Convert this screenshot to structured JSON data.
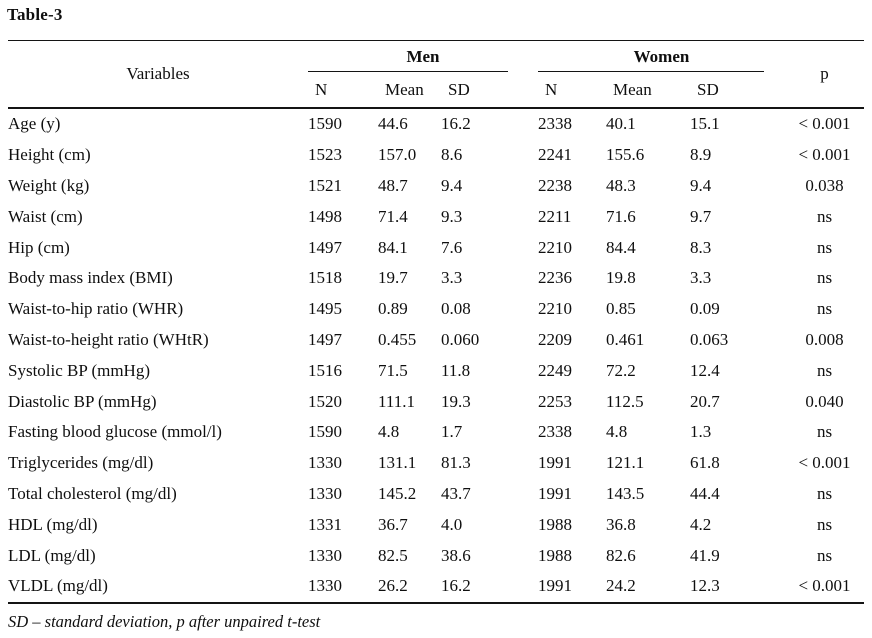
{
  "title": "Table-3",
  "header": {
    "variables": "Variables",
    "men_group": "Men",
    "women_group": "Women",
    "p": "p",
    "n": "N",
    "mean": "Mean",
    "sd": "SD"
  },
  "rows": [
    {
      "variable": "Age (y)",
      "men_n": "1590",
      "men_mean": "44.6",
      "men_sd": "16.2",
      "women_n": "2338",
      "women_mean": "40.1",
      "women_sd": "15.1",
      "p": "< 0.001"
    },
    {
      "variable": "Height (cm)",
      "men_n": "1523",
      "men_mean": "157.0",
      "men_sd": "8.6",
      "women_n": "2241",
      "women_mean": "155.6",
      "women_sd": "8.9",
      "p": "< 0.001"
    },
    {
      "variable": "Weight (kg)",
      "men_n": "1521",
      "men_mean": "48.7",
      "men_sd": "9.4",
      "women_n": "2238",
      "women_mean": "48.3",
      "women_sd": "9.4",
      "p": "0.038"
    },
    {
      "variable": "Waist (cm)",
      "men_n": "1498",
      "men_mean": "71.4",
      "men_sd": "9.3",
      "women_n": "2211",
      "women_mean": "71.6",
      "women_sd": "9.7",
      "p": "ns"
    },
    {
      "variable": "Hip (cm)",
      "men_n": "1497",
      "men_mean": "84.1",
      "men_sd": "7.6",
      "women_n": "2210",
      "women_mean": "84.4",
      "women_sd": "8.3",
      "p": "ns"
    },
    {
      "variable": "Body mass index (BMI)",
      "men_n": "1518",
      "men_mean": "19.7",
      "men_sd": "3.3",
      "women_n": "2236",
      "women_mean": "19.8",
      "women_sd": "3.3",
      "p": "ns"
    },
    {
      "variable": "Waist-to-hip ratio (WHR)",
      "men_n": "1495",
      "men_mean": "0.89",
      "men_sd": "0.08",
      "women_n": "2210",
      "women_mean": "0.85",
      "women_sd": "0.09",
      "p": "ns"
    },
    {
      "variable": "Waist-to-height ratio (WHtR)",
      "men_n": "1497",
      "men_mean": "0.455",
      "men_sd": "0.060",
      "women_n": "2209",
      "women_mean": "0.461",
      "women_sd": "0.063",
      "p": "0.008"
    },
    {
      "variable": "Systolic BP (mmHg)",
      "men_n": "1516",
      "men_mean": "71.5",
      "men_sd": "11.8",
      "women_n": "2249",
      "women_mean": "72.2",
      "women_sd": "12.4",
      "p": "ns"
    },
    {
      "variable": "Diastolic BP (mmHg)",
      "men_n": "1520",
      "men_mean": "111.1",
      "men_sd": "19.3",
      "women_n": "2253",
      "women_mean": "112.5",
      "women_sd": "20.7",
      "p": "0.040"
    },
    {
      "variable": "Fasting blood glucose (mmol/l)",
      "men_n": "1590",
      "men_mean": "4.8",
      "men_sd": "1.7",
      "women_n": "2338",
      "women_mean": "4.8",
      "women_sd": "1.3",
      "p": "ns"
    },
    {
      "variable": "Triglycerides (mg/dl)",
      "men_n": "1330",
      "men_mean": "131.1",
      "men_sd": "81.3",
      "women_n": "1991",
      "women_mean": "121.1",
      "women_sd": "61.8",
      "p": "< 0.001"
    },
    {
      "variable": "Total cholesterol (mg/dl)",
      "men_n": "1330",
      "men_mean": "145.2",
      "men_sd": "43.7",
      "women_n": "1991",
      "women_mean": "143.5",
      "women_sd": "44.4",
      "p": "ns"
    },
    {
      "variable": "HDL (mg/dl)",
      "men_n": "1331",
      "men_mean": "36.7",
      "men_sd": "4.0",
      "women_n": "1988",
      "women_mean": "36.8",
      "women_sd": "4.2",
      "p": "ns"
    },
    {
      "variable": "LDL (mg/dl)",
      "men_n": "1330",
      "men_mean": "82.5",
      "men_sd": "38.6",
      "women_n": "1988",
      "women_mean": "82.6",
      "women_sd": "41.9",
      "p": "ns"
    },
    {
      "variable": "VLDL (mg/dl)",
      "men_n": "1330",
      "men_mean": "26.2",
      "men_sd": "16.2",
      "women_n": "1991",
      "women_mean": "24.2",
      "women_sd": "12.3",
      "p": "< 0.001"
    }
  ],
  "footnote": "SD – standard deviation, p after unpaired t-test",
  "colors": {
    "background": "#ffffff",
    "text": "#0f0f0f",
    "rule": "#141414"
  }
}
